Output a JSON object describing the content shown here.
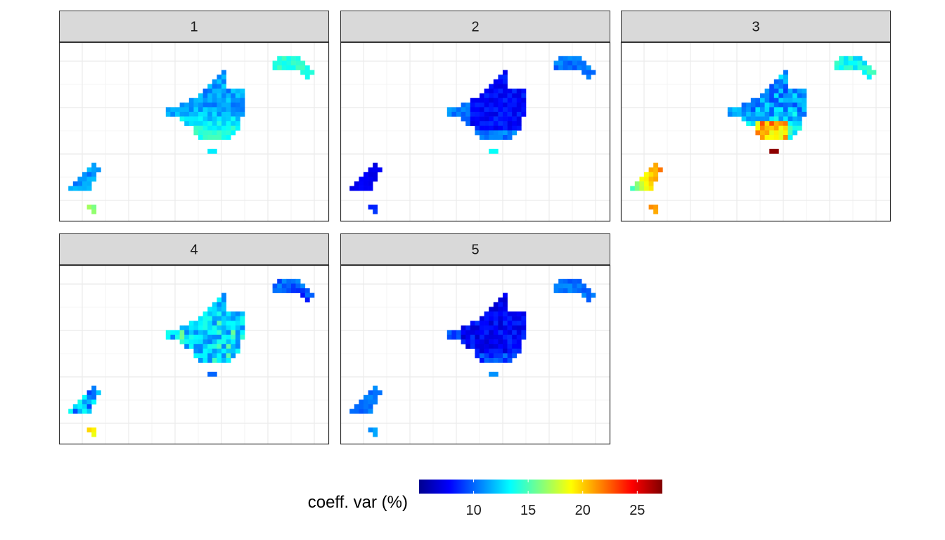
{
  "chart_data": {
    "type": "heatmap",
    "facets": [
      {
        "label": "1",
        "palette": "p1"
      },
      {
        "label": "2",
        "palette": "p2"
      },
      {
        "label": "3",
        "palette": "p3"
      },
      {
        "label": "4",
        "palette": "p4"
      },
      {
        "label": "5",
        "palette": "p5"
      }
    ],
    "legend": {
      "title": "coeff. var (%)",
      "min": 5.0,
      "max": 27.3,
      "ticks": [
        10,
        15,
        20,
        25
      ],
      "colors": [
        "#00008F",
        "#0000FF",
        "#0080FF",
        "#00FFFF",
        "#80FF80",
        "#FFFF00",
        "#FF8000",
        "#FF0000",
        "#800000"
      ]
    },
    "grid": true
  }
}
